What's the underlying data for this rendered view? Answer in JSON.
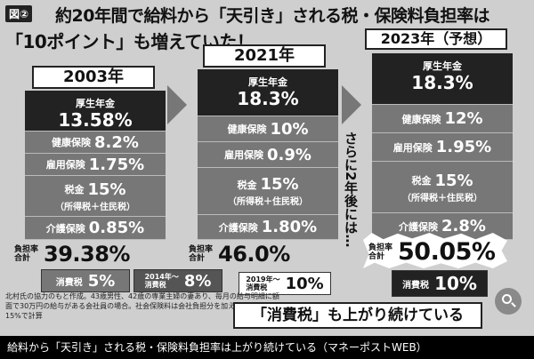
{
  "title": {
    "figure_label": "図②",
    "line1": "約20年間で給料から「天引き」される税・保険料負担率は",
    "line2": "「10ポイント」も増えていた！"
  },
  "chart_data": {
    "type": "stacked-bar",
    "categories": [
      "2003年",
      "2021年",
      "2023年（予想）"
    ],
    "series": [
      {
        "name": "厚生年金",
        "values": [
          13.58,
          18.3,
          18.3
        ],
        "labels": [
          "13.58%",
          "18.3%",
          "18.3%"
        ]
      },
      {
        "name": "健康保険",
        "values": [
          8.2,
          10,
          12
        ],
        "labels": [
          "8.2%",
          "10%",
          "12%"
        ]
      },
      {
        "name": "雇用保険",
        "values": [
          1.75,
          0.9,
          1.95
        ],
        "labels": [
          "1.75%",
          "0.9%",
          "1.95%"
        ]
      },
      {
        "name": "税金",
        "sublabel": "（所得税＋住民税）",
        "values": [
          15,
          15,
          15
        ],
        "labels": [
          "15%",
          "15%",
          "15%"
        ]
      },
      {
        "name": "介護保険",
        "values": [
          0.85,
          1.8,
          2.8
        ],
        "labels": [
          "0.85%",
          "1.80%",
          "2.8%"
        ]
      }
    ],
    "totals": {
      "label_top": "負担率",
      "label_bottom": "合計",
      "values": [
        39.38,
        46.0,
        50.05
      ],
      "labels": [
        "39.38%",
        "46.0%",
        "50.05%"
      ]
    },
    "consumption_tax": {
      "labels": [
        "消費税",
        "2014年～\n消費税",
        "2019年～\n消費税",
        "消費税"
      ],
      "values": [
        "5%",
        "8%",
        "10%",
        "10%"
      ]
    }
  },
  "years": {
    "y2003": "2003年",
    "y2021": "2021年",
    "y2023": "2023年（予想）"
  },
  "side_text": "さらに2年後には…",
  "note": "北村氏の協力のもと作成。43歳男性、42歳の専業主婦の妻あり、毎月の給与明細に額面で30万円の給与がある会社員の場合。社会保険料は会社負担分を加えている。税率は15%で計算",
  "banner": "「消費税」も上がり続けている",
  "caption": "給料から「天引き」される税・保険料負担率は上がり続けている（マネーポストWEB）",
  "icons": {
    "zoom": "zoom-in-icon"
  }
}
